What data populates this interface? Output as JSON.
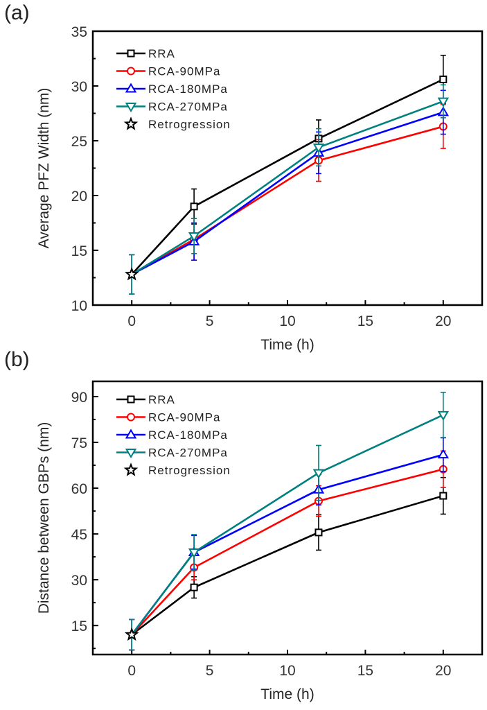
{
  "figure": {
    "panels": [
      {
        "label": "(a)"
      },
      {
        "label": "(b)"
      }
    ]
  },
  "chart_data": [
    {
      "type": "line",
      "panel": "(a)",
      "title": "",
      "xlabel": "Time (h)",
      "ylabel": "Average PFZ Width (nm)",
      "xlim": [
        -2.5,
        22.5
      ],
      "ylim": [
        10,
        35
      ],
      "xticks": [
        0,
        5,
        10,
        15,
        20
      ],
      "yticks": [
        10,
        15,
        20,
        25,
        30,
        35
      ],
      "xtick_labels": [
        "0",
        "5",
        "10",
        "15",
        "20"
      ],
      "ytick_labels": [
        "10",
        "15",
        "20",
        "25",
        "30",
        "35"
      ],
      "grid": false,
      "legend_position": "top-left",
      "x": [
        0,
        4,
        12,
        20
      ],
      "series": [
        {
          "name": "RRA",
          "color": "#000000",
          "marker": "square",
          "values": [
            12.8,
            19.0,
            25.2,
            30.6
          ],
          "errors": [
            1.8,
            1.6,
            1.7,
            2.2
          ]
        },
        {
          "name": "RCA-90MPa",
          "color": "#ff0000",
          "marker": "circle",
          "values": [
            12.8,
            16.0,
            23.2,
            26.3
          ],
          "errors": [
            1.8,
            1.9,
            1.9,
            2.0
          ]
        },
        {
          "name": "RCA-180MPa",
          "color": "#0000ff",
          "marker": "triangle-up",
          "values": [
            12.8,
            15.8,
            23.9,
            27.6
          ],
          "errors": [
            1.8,
            1.7,
            1.9,
            2.0
          ]
        },
        {
          "name": "RCA-270MPa",
          "color": "#008080",
          "marker": "triangle-down",
          "values": [
            12.8,
            16.3,
            24.4,
            28.6
          ],
          "errors": [
            1.8,
            1.6,
            1.7,
            1.5
          ]
        }
      ],
      "points": [
        {
          "name": "Retrogression",
          "color": "#000000",
          "marker": "star",
          "x": 0,
          "y": 12.8
        }
      ]
    },
    {
      "type": "line",
      "panel": "(b)",
      "title": "",
      "xlabel": "Time (h)",
      "ylabel": "Distance between GBPs (nm)",
      "xlim": [
        -2.5,
        22.5
      ],
      "ylim": [
        5.5,
        95
      ],
      "xticks": [
        0,
        5,
        10,
        15,
        20
      ],
      "yticks": [
        15,
        30,
        45,
        60,
        75,
        90
      ],
      "xtick_labels": [
        "0",
        "5",
        "10",
        "15",
        "20"
      ],
      "ytick_labels": [
        "15",
        "30",
        "45",
        "60",
        "75",
        "90"
      ],
      "grid": false,
      "legend_position": "top-left",
      "x": [
        0,
        4,
        12,
        20
      ],
      "series": [
        {
          "name": "RRA",
          "color": "#000000",
          "marker": "square",
          "values": [
            12.0,
            27.5,
            45.5,
            57.5
          ],
          "errors": [
            5.0,
            3.5,
            5.8,
            6.0
          ]
        },
        {
          "name": "RCA-90MPa",
          "color": "#ff0000",
          "marker": "circle",
          "values": [
            12.0,
            34.0,
            55.8,
            66.2
          ],
          "errors": [
            5.0,
            4.0,
            5.0,
            6.0
          ]
        },
        {
          "name": "RCA-180MPa",
          "color": "#0000ff",
          "marker": "triangle-up",
          "values": [
            12.0,
            39.0,
            59.5,
            71.0
          ],
          "errors": [
            5.0,
            5.5,
            5.0,
            5.5
          ]
        },
        {
          "name": "RCA-270MPa",
          "color": "#008080",
          "marker": "triangle-down",
          "values": [
            12.0,
            39.0,
            65.0,
            84.0
          ],
          "errors": [
            5.0,
            5.8,
            9.0,
            7.4
          ]
        }
      ],
      "points": [
        {
          "name": "Retrogression",
          "color": "#000000",
          "marker": "star",
          "x": 0,
          "y": 12.0
        }
      ]
    }
  ]
}
